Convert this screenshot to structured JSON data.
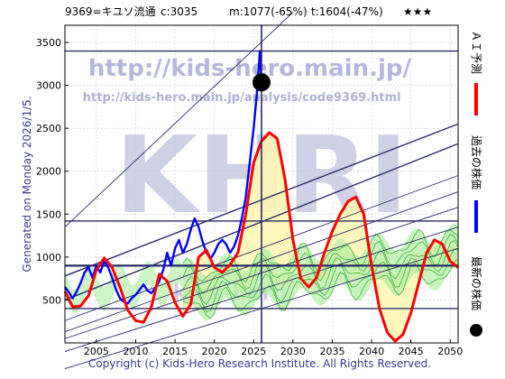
{
  "header": {
    "code_name": "9369=キユソ流通",
    "current": "c:3035",
    "min": "m:1077(-65%)",
    "target": "t:1604(-47%)",
    "rating": "★★★"
  },
  "side_text": "Generated on Monday 2026/1/5.",
  "footer": "Copyright (c) Kids-Hero Research Institute. All Rights Reserved.",
  "watermark": {
    "url1": "http://kids-hero.main.jp/",
    "url2": "http://kids-hero.main.jp/analysis/code9369.html",
    "big": "KHRI",
    "low": "kids-hero"
  },
  "legend": [
    {
      "label": "ＡＩ予測",
      "color": "#ff0000"
    },
    {
      "label": "過去の株価",
      "color": "#0000ff"
    },
    {
      "label": "最新の株価",
      "color": "#000000"
    }
  ],
  "chart_data": {
    "type": "line",
    "title": "9369=キユソ流通 c:3035 m:1077(-65%) t:1604(-47%) ★★★",
    "xlim": [
      2001,
      2051
    ],
    "ylim": [
      0,
      3700
    ],
    "x_ticks": [
      2005,
      2010,
      2015,
      2020,
      2025,
      2030,
      2035,
      2040,
      2045,
      2050
    ],
    "y_ticks": [
      500,
      1000,
      1500,
      2000,
      2500,
      3000,
      3500
    ],
    "grid": true,
    "current_point": {
      "x": 2026.0,
      "y": 3035
    },
    "horizontal_lines": [
      3400,
      1420,
      900,
      400
    ],
    "series": [
      {
        "name": "過去の株価",
        "color": "#0000ff",
        "points": [
          [
            2001.0,
            650
          ],
          [
            2001.5,
            590
          ],
          [
            2002.0,
            520
          ],
          [
            2002.5,
            600
          ],
          [
            2003.0,
            700
          ],
          [
            2003.5,
            820
          ],
          [
            2004.0,
            880
          ],
          [
            2004.5,
            760
          ],
          [
            2005.0,
            900
          ],
          [
            2005.5,
            820
          ],
          [
            2006.0,
            950
          ],
          [
            2006.5,
            880
          ],
          [
            2007.0,
            760
          ],
          [
            2007.5,
            620
          ],
          [
            2008.0,
            520
          ],
          [
            2008.5,
            480
          ],
          [
            2009.0,
            460
          ],
          [
            2009.5,
            520
          ],
          [
            2010.0,
            560
          ],
          [
            2010.5,
            620
          ],
          [
            2011.0,
            680
          ],
          [
            2011.5,
            610
          ],
          [
            2012.0,
            580
          ],
          [
            2012.5,
            640
          ],
          [
            2013.0,
            720
          ],
          [
            2013.5,
            850
          ],
          [
            2014.0,
            1050
          ],
          [
            2014.5,
            900
          ],
          [
            2015.0,
            1100
          ],
          [
            2015.5,
            1200
          ],
          [
            2016.0,
            1050
          ],
          [
            2016.5,
            1150
          ],
          [
            2017.0,
            1320
          ],
          [
            2017.5,
            1450
          ],
          [
            2018.0,
            1350
          ],
          [
            2018.5,
            1180
          ],
          [
            2019.0,
            1050
          ],
          [
            2019.5,
            980
          ],
          [
            2020.0,
            1050
          ],
          [
            2020.5,
            1150
          ],
          [
            2021.0,
            1200
          ],
          [
            2021.5,
            1150
          ],
          [
            2022.0,
            1050
          ],
          [
            2022.5,
            1120
          ],
          [
            2023.0,
            1250
          ],
          [
            2023.5,
            1450
          ],
          [
            2024.0,
            1700
          ],
          [
            2024.5,
            2100
          ],
          [
            2025.0,
            2500
          ],
          [
            2025.4,
            2900
          ],
          [
            2025.8,
            3400
          ],
          [
            2026.0,
            3035
          ]
        ]
      },
      {
        "name": "ＡＩ予測",
        "color": "#ff0000",
        "points": [
          [
            2001.0,
            600
          ],
          [
            2002.0,
            420
          ],
          [
            2003.0,
            430
          ],
          [
            2004.0,
            550
          ],
          [
            2005.0,
            850
          ],
          [
            2006.0,
            990
          ],
          [
            2007.0,
            880
          ],
          [
            2008.0,
            650
          ],
          [
            2009.0,
            380
          ],
          [
            2010.0,
            260
          ],
          [
            2011.0,
            240
          ],
          [
            2012.0,
            420
          ],
          [
            2013.0,
            800
          ],
          [
            2014.0,
            720
          ],
          [
            2015.0,
            470
          ],
          [
            2016.0,
            310
          ],
          [
            2017.0,
            450
          ],
          [
            2018.0,
            1000
          ],
          [
            2019.0,
            1080
          ],
          [
            2020.0,
            880
          ],
          [
            2021.0,
            820
          ],
          [
            2022.0,
            910
          ],
          [
            2023.0,
            1050
          ],
          [
            2024.0,
            1500
          ],
          [
            2025.0,
            2100
          ],
          [
            2026.0,
            2350
          ],
          [
            2027.0,
            2450
          ],
          [
            2028.0,
            2380
          ],
          [
            2029.0,
            1900
          ],
          [
            2030.0,
            1200
          ],
          [
            2031.0,
            750
          ],
          [
            2032.0,
            650
          ],
          [
            2033.0,
            760
          ],
          [
            2034.0,
            1050
          ],
          [
            2035.0,
            1300
          ],
          [
            2036.0,
            1500
          ],
          [
            2037.0,
            1650
          ],
          [
            2038.0,
            1700
          ],
          [
            2039.0,
            1500
          ],
          [
            2040.0,
            900
          ],
          [
            2041.0,
            400
          ],
          [
            2042.0,
            120
          ],
          [
            2043.0,
            20
          ],
          [
            2044.0,
            100
          ],
          [
            2045.0,
            350
          ],
          [
            2046.0,
            700
          ],
          [
            2047.0,
            1050
          ],
          [
            2048.0,
            1200
          ],
          [
            2049.0,
            1150
          ],
          [
            2050.0,
            950
          ],
          [
            2051.0,
            880
          ]
        ]
      }
    ]
  }
}
